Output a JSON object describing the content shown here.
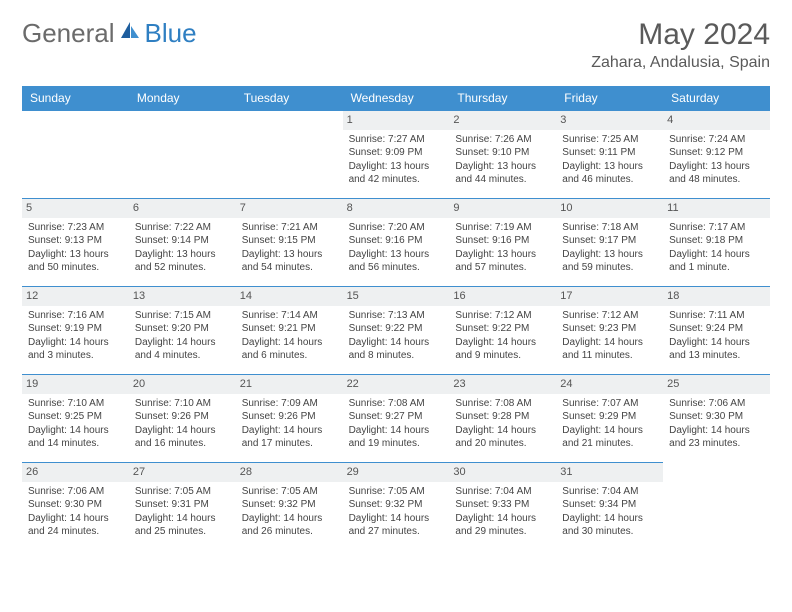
{
  "brand": {
    "text1": "General",
    "text2": "Blue"
  },
  "title": "May 2024",
  "location": "Zahara, Andalusia, Spain",
  "colors": {
    "header_bg": "#3f8fcf",
    "header_text": "#ffffff",
    "border": "#3f8fcf",
    "daynum_bg": "#eef0f1",
    "body_text": "#444444",
    "title_text": "#5a5a5a",
    "logo_gray": "#6b6b6b",
    "logo_blue": "#2f7fc2"
  },
  "weekdays": [
    "Sunday",
    "Monday",
    "Tuesday",
    "Wednesday",
    "Thursday",
    "Friday",
    "Saturday"
  ],
  "lead_blanks": 3,
  "days": [
    {
      "n": "1",
      "sr": "7:27 AM",
      "ss": "9:09 PM",
      "dl": "13 hours and 42 minutes."
    },
    {
      "n": "2",
      "sr": "7:26 AM",
      "ss": "9:10 PM",
      "dl": "13 hours and 44 minutes."
    },
    {
      "n": "3",
      "sr": "7:25 AM",
      "ss": "9:11 PM",
      "dl": "13 hours and 46 minutes."
    },
    {
      "n": "4",
      "sr": "7:24 AM",
      "ss": "9:12 PM",
      "dl": "13 hours and 48 minutes."
    },
    {
      "n": "5",
      "sr": "7:23 AM",
      "ss": "9:13 PM",
      "dl": "13 hours and 50 minutes."
    },
    {
      "n": "6",
      "sr": "7:22 AM",
      "ss": "9:14 PM",
      "dl": "13 hours and 52 minutes."
    },
    {
      "n": "7",
      "sr": "7:21 AM",
      "ss": "9:15 PM",
      "dl": "13 hours and 54 minutes."
    },
    {
      "n": "8",
      "sr": "7:20 AM",
      "ss": "9:16 PM",
      "dl": "13 hours and 56 minutes."
    },
    {
      "n": "9",
      "sr": "7:19 AM",
      "ss": "9:16 PM",
      "dl": "13 hours and 57 minutes."
    },
    {
      "n": "10",
      "sr": "7:18 AM",
      "ss": "9:17 PM",
      "dl": "13 hours and 59 minutes."
    },
    {
      "n": "11",
      "sr": "7:17 AM",
      "ss": "9:18 PM",
      "dl": "14 hours and 1 minute."
    },
    {
      "n": "12",
      "sr": "7:16 AM",
      "ss": "9:19 PM",
      "dl": "14 hours and 3 minutes."
    },
    {
      "n": "13",
      "sr": "7:15 AM",
      "ss": "9:20 PM",
      "dl": "14 hours and 4 minutes."
    },
    {
      "n": "14",
      "sr": "7:14 AM",
      "ss": "9:21 PM",
      "dl": "14 hours and 6 minutes."
    },
    {
      "n": "15",
      "sr": "7:13 AM",
      "ss": "9:22 PM",
      "dl": "14 hours and 8 minutes."
    },
    {
      "n": "16",
      "sr": "7:12 AM",
      "ss": "9:22 PM",
      "dl": "14 hours and 9 minutes."
    },
    {
      "n": "17",
      "sr": "7:12 AM",
      "ss": "9:23 PM",
      "dl": "14 hours and 11 minutes."
    },
    {
      "n": "18",
      "sr": "7:11 AM",
      "ss": "9:24 PM",
      "dl": "14 hours and 13 minutes."
    },
    {
      "n": "19",
      "sr": "7:10 AM",
      "ss": "9:25 PM",
      "dl": "14 hours and 14 minutes."
    },
    {
      "n": "20",
      "sr": "7:10 AM",
      "ss": "9:26 PM",
      "dl": "14 hours and 16 minutes."
    },
    {
      "n": "21",
      "sr": "7:09 AM",
      "ss": "9:26 PM",
      "dl": "14 hours and 17 minutes."
    },
    {
      "n": "22",
      "sr": "7:08 AM",
      "ss": "9:27 PM",
      "dl": "14 hours and 19 minutes."
    },
    {
      "n": "23",
      "sr": "7:08 AM",
      "ss": "9:28 PM",
      "dl": "14 hours and 20 minutes."
    },
    {
      "n": "24",
      "sr": "7:07 AM",
      "ss": "9:29 PM",
      "dl": "14 hours and 21 minutes."
    },
    {
      "n": "25",
      "sr": "7:06 AM",
      "ss": "9:30 PM",
      "dl": "14 hours and 23 minutes."
    },
    {
      "n": "26",
      "sr": "7:06 AM",
      "ss": "9:30 PM",
      "dl": "14 hours and 24 minutes."
    },
    {
      "n": "27",
      "sr": "7:05 AM",
      "ss": "9:31 PM",
      "dl": "14 hours and 25 minutes."
    },
    {
      "n": "28",
      "sr": "7:05 AM",
      "ss": "9:32 PM",
      "dl": "14 hours and 26 minutes."
    },
    {
      "n": "29",
      "sr": "7:05 AM",
      "ss": "9:32 PM",
      "dl": "14 hours and 27 minutes."
    },
    {
      "n": "30",
      "sr": "7:04 AM",
      "ss": "9:33 PM",
      "dl": "14 hours and 29 minutes."
    },
    {
      "n": "31",
      "sr": "7:04 AM",
      "ss": "9:34 PM",
      "dl": "14 hours and 30 minutes."
    }
  ],
  "labels": {
    "sunrise": "Sunrise: ",
    "sunset": "Sunset: ",
    "daylight": "Daylight: "
  }
}
